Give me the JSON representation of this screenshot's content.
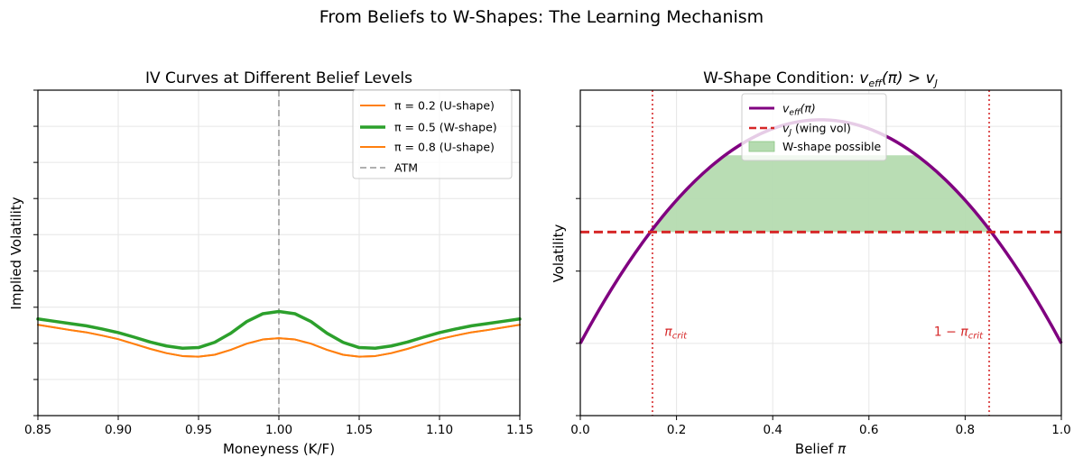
{
  "figure": {
    "suptitle": "From Beliefs to W-Shapes: The Learning Mechanism"
  },
  "colors": {
    "orange": "#ff7f0e",
    "green": "#2ca02c",
    "gray": "#b0b0b0",
    "purple": "#800080",
    "red": "#d62728",
    "fill_green": "#b5dbb0",
    "grid": "#e6e6e6"
  },
  "chart_data": [
    {
      "type": "line",
      "title": "IV Curves at Different Belief Levels",
      "xlabel": "Moneyness (K/F)",
      "ylabel": "Implied Volatility",
      "xlim": [
        0.85,
        1.15
      ],
      "ylim": [
        0.0,
        1.0
      ],
      "xticks": [
        "0.85",
        "0.90",
        "0.95",
        "1.00",
        "1.05",
        "1.10",
        "1.15"
      ],
      "ytick_positions": [
        0.0,
        0.111,
        0.222,
        0.333,
        0.444,
        0.556,
        0.667,
        0.778,
        0.889,
        1.0
      ],
      "ytick_labels_visible": false,
      "grid": true,
      "legend_location": "top-right",
      "x": [
        0.85,
        0.86,
        0.87,
        0.88,
        0.89,
        0.9,
        0.91,
        0.92,
        0.93,
        0.94,
        0.95,
        0.96,
        0.97,
        0.98,
        0.99,
        1.0,
        1.01,
        1.02,
        1.03,
        1.04,
        1.05,
        1.06,
        1.07,
        1.08,
        1.09,
        1.1,
        1.11,
        1.12,
        1.13,
        1.14,
        1.15
      ],
      "series": [
        {
          "name": "π = 0.2 (U-shape)",
          "style": "solid",
          "width": 2,
          "values": [
            0.279,
            0.271,
            0.263,
            0.256,
            0.246,
            0.235,
            0.22,
            0.205,
            0.192,
            0.183,
            0.181,
            0.187,
            0.202,
            0.221,
            0.234,
            0.238,
            0.234,
            0.221,
            0.202,
            0.187,
            0.181,
            0.183,
            0.192,
            0.205,
            0.22,
            0.235,
            0.246,
            0.256,
            0.263,
            0.271,
            0.279
          ]
        },
        {
          "name": "π = 0.5 (W-shape)",
          "style": "solid",
          "width": 3.5,
          "values": [
            0.297,
            0.29,
            0.283,
            0.276,
            0.266,
            0.255,
            0.241,
            0.226,
            0.214,
            0.207,
            0.209,
            0.225,
            0.253,
            0.289,
            0.313,
            0.32,
            0.313,
            0.289,
            0.253,
            0.225,
            0.209,
            0.207,
            0.214,
            0.226,
            0.241,
            0.255,
            0.266,
            0.276,
            0.283,
            0.29,
            0.297
          ]
        },
        {
          "name": "π = 0.8 (U-shape)",
          "style": "solid",
          "width": 2,
          "values": [
            0.279,
            0.271,
            0.263,
            0.256,
            0.246,
            0.235,
            0.22,
            0.205,
            0.192,
            0.183,
            0.181,
            0.187,
            0.202,
            0.221,
            0.234,
            0.238,
            0.234,
            0.221,
            0.202,
            0.187,
            0.181,
            0.183,
            0.192,
            0.205,
            0.22,
            0.235,
            0.246,
            0.256,
            0.263,
            0.271,
            0.279
          ]
        }
      ],
      "vlines": [
        {
          "x": 1.0,
          "name": "ATM",
          "style": "dashed"
        }
      ]
    },
    {
      "type": "line",
      "title_text": "W-Shape Condition: ",
      "title_math": {
        "lhs": "v",
        "lhs_sub": "eff",
        "arg": "(π)",
        "op": " > ",
        "rhs": "v",
        "rhs_sub": "J"
      },
      "xlabel": "Belief",
      "xlabel_math": "π",
      "ylabel": "Volatility",
      "xlim": [
        0.0,
        1.0
      ],
      "ylim": [
        0.0,
        1.0
      ],
      "xticks": [
        "0.0",
        "0.2",
        "0.4",
        "0.6",
        "0.8",
        "1.0"
      ],
      "ytick_positions": [
        0.0,
        0.222,
        0.444,
        0.667,
        0.889
      ],
      "ytick_labels_visible": false,
      "grid": true,
      "legend_location": "top-center",
      "curve": {
        "name": "v",
        "name_sub": "eff",
        "name_tail": "(π)",
        "x": [
          0.0,
          0.05,
          0.1,
          0.15,
          0.2,
          0.25,
          0.3,
          0.35,
          0.4,
          0.45,
          0.5,
          0.55,
          0.6,
          0.65,
          0.7,
          0.75,
          0.8,
          0.85,
          0.9,
          0.95,
          1.0
        ],
        "y": [
          0.222,
          0.349,
          0.463,
          0.564,
          0.652,
          0.728,
          0.79,
          0.839,
          0.876,
          0.899,
          0.909,
          0.899,
          0.876,
          0.839,
          0.79,
          0.728,
          0.652,
          0.564,
          0.463,
          0.349,
          0.222
        ]
      },
      "threshold": {
        "name": "v",
        "name_sub": "J",
        "name_tail": " (wing vol)",
        "y": 0.564,
        "style": "dashed"
      },
      "fill": {
        "name": "W-shape possible",
        "x_from": 0.15,
        "x_to": 0.85,
        "y_top_cap": 0.8
      },
      "vlines": [
        {
          "x": 0.15,
          "style": "dotted"
        },
        {
          "x": 0.85,
          "style": "dotted"
        }
      ],
      "annotations": [
        {
          "prefix": "",
          "text": "π",
          "sub": "crit",
          "x": 0.175,
          "y": 0.245
        },
        {
          "prefix": "1 − ",
          "text": "π",
          "sub": "crit",
          "x": 0.735,
          "y": 0.245
        }
      ]
    }
  ]
}
